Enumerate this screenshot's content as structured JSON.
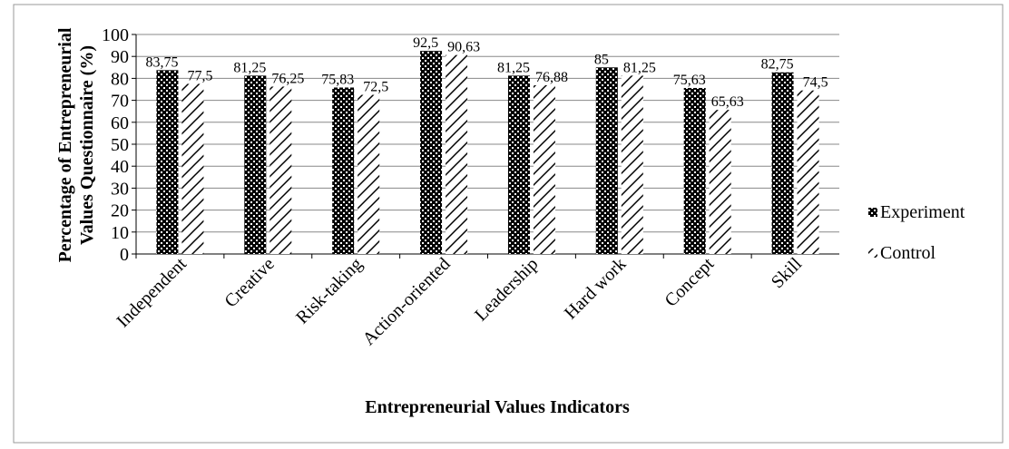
{
  "chart_data": {
    "type": "bar",
    "ylabel": [
      "Percentage of  Entrepreneurial",
      "Values Questionnaire (%)"
    ],
    "xlabel": "Entrepreneurial Values Indicators",
    "categories": [
      "Independent",
      "Creative",
      "Risk-taking",
      "Action-oriented",
      "Leadership",
      "Hard work",
      "Concept",
      "Skill"
    ],
    "series": [
      {
        "name": "Experiment",
        "color": "#000000",
        "values": [
          83.75,
          81.25,
          75.83,
          92.5,
          81.25,
          85,
          75.63,
          82.75
        ],
        "value_labels": [
          "83,75",
          "81,25",
          "75,83",
          "92,5",
          "81,25",
          "85",
          "75,63",
          "82,75"
        ]
      },
      {
        "name": "Control",
        "color": "#ffffff",
        "values": [
          77.5,
          76.25,
          72.5,
          90.63,
          76.88,
          81.25,
          65.63,
          74.5
        ],
        "value_labels": [
          "77,5",
          "76,25",
          "72,5",
          "90,63",
          "76,88",
          "81,25",
          "65,63",
          "74,5"
        ]
      }
    ],
    "ylim": [
      0,
      100
    ],
    "yticks": [
      0,
      10,
      20,
      30,
      40,
      50,
      60,
      70,
      80,
      90,
      100
    ],
    "grid": true,
    "legend": "right"
  }
}
